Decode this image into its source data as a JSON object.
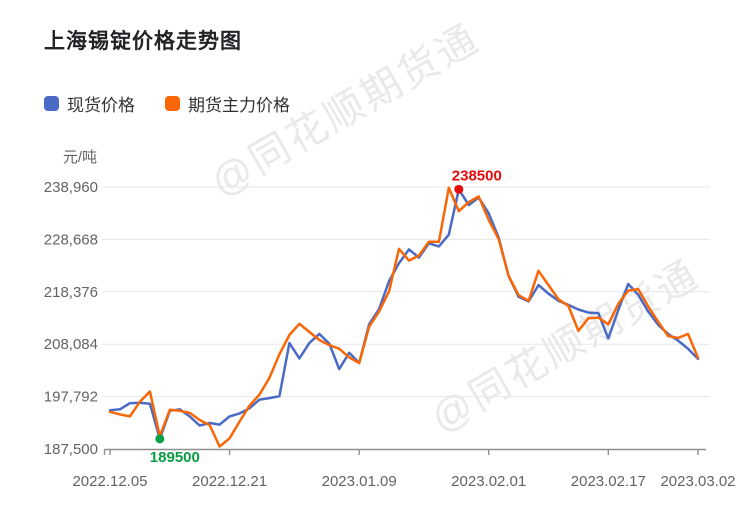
{
  "title": "上海锡锭价格走势图",
  "unit_label": "元/吨",
  "watermark": {
    "text": "@同花顺期货通"
  },
  "legend": {
    "items": [
      {
        "label": "现货价格",
        "color": "#4a6bc5"
      },
      {
        "label": "期货主力价格",
        "color": "#f96606"
      }
    ]
  },
  "colors": {
    "spot_line": "#4a6bc5",
    "futures_line": "#f96606",
    "max_annotation": "#e8090a",
    "min_annotation": "#089e42",
    "grid": "#e7e7e7",
    "axis": "#8f8f8f",
    "axis_text": "#636363",
    "title_text": "#222428",
    "watermark_text": "#e9e9e9"
  },
  "chart_data": {
    "type": "line",
    "title": "上海锡锭价格走势图",
    "ylabel": "元/吨",
    "grid": true,
    "legend_position": "top-left",
    "x_axis": {
      "tick_labels": [
        "2022.12.05",
        "2022.12.21",
        "2023.01.09",
        "2023.02.01",
        "2023.02.17",
        "2023.03.02"
      ],
      "tick_indices": [
        0,
        12,
        25,
        38,
        50,
        59
      ],
      "point_count": 60
    },
    "y_axis": {
      "tick_labels": [
        "238,960",
        "228,668",
        "218,376",
        "208,084",
        "197,792",
        "187,500"
      ],
      "tick_values": [
        238960,
        228668,
        218376,
        208084,
        197792,
        187500
      ],
      "min": 187500,
      "max": 238960
    },
    "series": [
      {
        "name": "现货价格",
        "color": "#4a6bc5",
        "values": [
          195100,
          195300,
          196500,
          196600,
          196400,
          189500,
          195000,
          195300,
          193900,
          192100,
          192600,
          192300,
          193900,
          194500,
          195500,
          197200,
          197500,
          197900,
          208300,
          205300,
          208300,
          210100,
          208200,
          203200,
          206400,
          204400,
          212000,
          215000,
          220500,
          224000,
          226700,
          225100,
          227900,
          227300,
          229600,
          238500,
          235400,
          236900,
          233800,
          229000,
          221500,
          217400,
          216500,
          219700,
          218000,
          216600,
          215800,
          214900,
          214300,
          214200,
          209200,
          214800,
          219900,
          217800,
          214500,
          211900,
          210100,
          208800,
          207200,
          205200
        ]
      },
      {
        "name": "期货主力价格",
        "color": "#f96606",
        "values": [
          194800,
          194300,
          193900,
          196800,
          198800,
          190000,
          195200,
          195000,
          194600,
          193200,
          192200,
          188000,
          189600,
          192900,
          196000,
          198200,
          201500,
          206100,
          209900,
          212100,
          210500,
          208900,
          207900,
          207200,
          205500,
          204400,
          211500,
          214500,
          218500,
          226800,
          224500,
          225500,
          228200,
          228200,
          238800,
          234200,
          236000,
          237100,
          232500,
          228700,
          221500,
          217700,
          216600,
          222500,
          219700,
          216900,
          215600,
          210700,
          213200,
          213300,
          212000,
          216000,
          218600,
          218900,
          215500,
          212500,
          209700,
          209300,
          210100,
          205400
        ]
      }
    ],
    "annotations": [
      {
        "type": "max",
        "label": "238500",
        "value": 238500,
        "series": "现货价格",
        "index": 35,
        "color": "#e8090a"
      },
      {
        "type": "min",
        "label": "189500",
        "value": 189500,
        "series": "现货价格",
        "index": 5,
        "color": "#089e42"
      }
    ]
  }
}
